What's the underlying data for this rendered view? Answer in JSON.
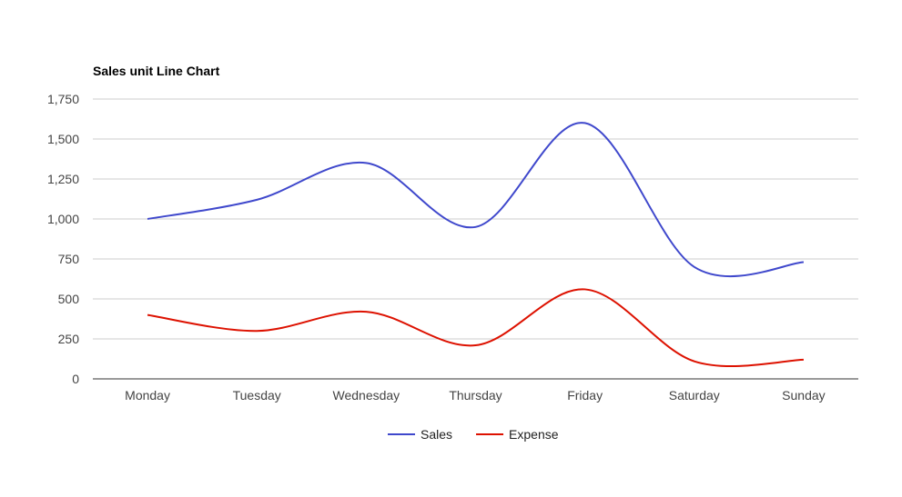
{
  "chart_data": {
    "type": "line",
    "title": "Sales unit Line Chart",
    "categories": [
      "Monday",
      "Tuesday",
      "Wednesday",
      "Thursday",
      "Friday",
      "Saturday",
      "Sunday"
    ],
    "series": [
      {
        "name": "Sales",
        "color": "#3f48cc",
        "values": [
          1000,
          1120,
          1350,
          950,
          1600,
          700,
          730
        ]
      },
      {
        "name": "Expense",
        "color": "#dd1100",
        "values": [
          400,
          300,
          420,
          210,
          560,
          110,
          120
        ]
      }
    ],
    "y_ticks": [
      "0",
      "250",
      "500",
      "750",
      "1,000",
      "1,250",
      "1,500",
      "1,750"
    ],
    "ylim": [
      0,
      1750
    ],
    "grid": true,
    "legend_position": "bottom",
    "smooth": true
  }
}
